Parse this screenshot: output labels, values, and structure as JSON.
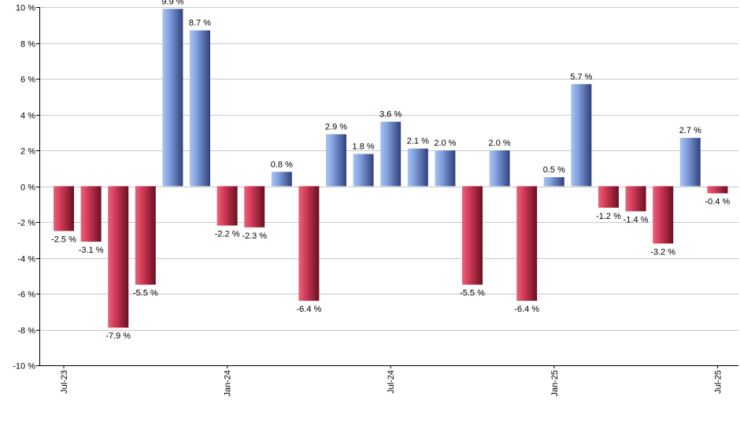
{
  "chart_data": {
    "type": "bar",
    "title": "",
    "xlabel": "",
    "ylabel": "",
    "ylim": [
      -10,
      10
    ],
    "yticks": [
      -10,
      -8,
      -6,
      -4,
      -2,
      0,
      2,
      4,
      6,
      8,
      10
    ],
    "ytick_labels": [
      "-10 %",
      "-8 %",
      "-6 %",
      "-4 %",
      "-2 %",
      "0 %",
      "2 %",
      "4 %",
      "6 %",
      "8 %",
      "10 %"
    ],
    "grid": true,
    "value_suffix": " %",
    "categories": [
      "Jul-23",
      "Aug-23",
      "Sep-23",
      "Oct-23",
      "Nov-23",
      "Dec-23",
      "Jan-24",
      "Feb-24",
      "Mar-24",
      "Apr-24",
      "May-24",
      "Jun-24",
      "Jul-24",
      "Aug-24",
      "Sep-24",
      "Oct-24",
      "Nov-24",
      "Dec-24",
      "Jan-25",
      "Feb-25",
      "Mar-25",
      "Apr-25",
      "May-25",
      "Jun-25",
      "Jul-25"
    ],
    "values": [
      -2.5,
      -3.1,
      -7.9,
      -5.5,
      9.9,
      8.7,
      -2.2,
      -2.3,
      0.8,
      -6.4,
      2.9,
      1.8,
      3.6,
      2.1,
      2.0,
      -5.5,
      2.0,
      -6.4,
      0.5,
      5.7,
      -1.2,
      -1.4,
      -3.2,
      2.7,
      -0.4
    ],
    "data_labels": [
      "-2.5 %",
      "-3.1 %",
      "-7.9 %",
      "-5.5 %",
      "9.9 %",
      "8.7 %",
      "-2.2 %",
      "-2.3 %",
      "0.8 %",
      "-6.4 %",
      "2.9 %",
      "1.8 %",
      "3.6 %",
      "2.1 %",
      "2.0 %",
      "-5.5 %",
      "2.0 %",
      "-6.4 %",
      "0.5 %",
      "5.7 %",
      "-1.2 %",
      "-1.4 %",
      "-3.2 %",
      "2.7 %",
      "-0.4 %"
    ],
    "xtick_labels": [
      {
        "index": 0,
        "label": "Jul-23"
      },
      {
        "index": 6,
        "label": "Jan-24"
      },
      {
        "index": 12,
        "label": "Jul-24"
      },
      {
        "index": 18,
        "label": "Jan-25"
      },
      {
        "index": 24,
        "label": "Jul-25"
      }
    ],
    "colors": {
      "positive": "#7f9fdd",
      "positive_dark": "#30407a",
      "negative": "#d23a58",
      "negative_dark": "#6a1020",
      "grid": "#c8c8c8",
      "axis": "#000000"
    }
  }
}
